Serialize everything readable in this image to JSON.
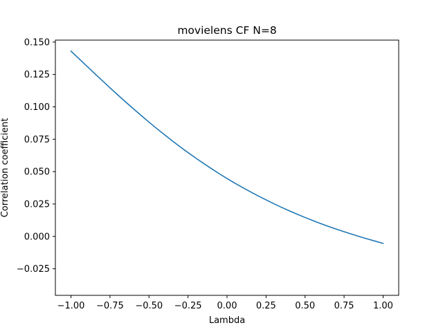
{
  "chart_data": {
    "type": "line",
    "title": "movielens CF N=8",
    "xlabel": "Lambda",
    "ylabel": "Correlation coefficient",
    "xlim": [
      -1.1,
      1.1
    ],
    "ylim": [
      -0.0455,
      0.1515
    ],
    "x_ticks": [
      -1.0,
      -0.75,
      -0.5,
      -0.25,
      0.0,
      0.25,
      0.5,
      0.75,
      1.0
    ],
    "x_tick_labels": [
      "−1.00",
      "−0.75",
      "−0.50",
      "−0.25",
      "0.00",
      "0.25",
      "0.50",
      "0.75",
      "1.00"
    ],
    "y_ticks": [
      -0.025,
      0.0,
      0.025,
      0.05,
      0.075,
      0.1,
      0.125,
      0.15
    ],
    "y_tick_labels": [
      "−0.025",
      "0.000",
      "0.025",
      "0.050",
      "0.075",
      "0.100",
      "0.125",
      "0.150"
    ],
    "grid": false,
    "series": [
      {
        "color": "#1f77b4",
        "x": [
          -1.0,
          -0.95,
          -0.9,
          -0.85,
          -0.8,
          -0.75,
          -0.7,
          -0.65,
          -0.6,
          -0.55,
          -0.5,
          -0.45,
          -0.4,
          -0.35,
          -0.3,
          -0.25,
          -0.2,
          -0.15,
          -0.1,
          -0.05,
          0.0,
          0.05,
          0.1,
          0.15,
          0.2,
          0.25,
          0.3,
          0.35,
          0.4,
          0.45,
          0.5,
          0.55,
          0.6,
          0.65,
          0.7,
          0.75,
          0.8,
          0.85,
          0.9,
          0.95,
          1.0
        ],
        "y": [
          0.143,
          0.1373,
          0.1316,
          0.1259,
          0.1203,
          0.1147,
          0.1092,
          0.1038,
          0.0985,
          0.0933,
          0.0882,
          0.0832,
          0.0784,
          0.0737,
          0.0691,
          0.0647,
          0.0604,
          0.0563,
          0.0523,
          0.0484,
          0.0447,
          0.0411,
          0.0377,
          0.0344,
          0.0312,
          0.0282,
          0.0252,
          0.0224,
          0.0197,
          0.0171,
          0.0146,
          0.0122,
          0.0099,
          0.0077,
          0.0056,
          0.0036,
          0.0017,
          -0.0002,
          -0.002,
          -0.0037,
          -0.0054
        ]
      }
    ]
  }
}
